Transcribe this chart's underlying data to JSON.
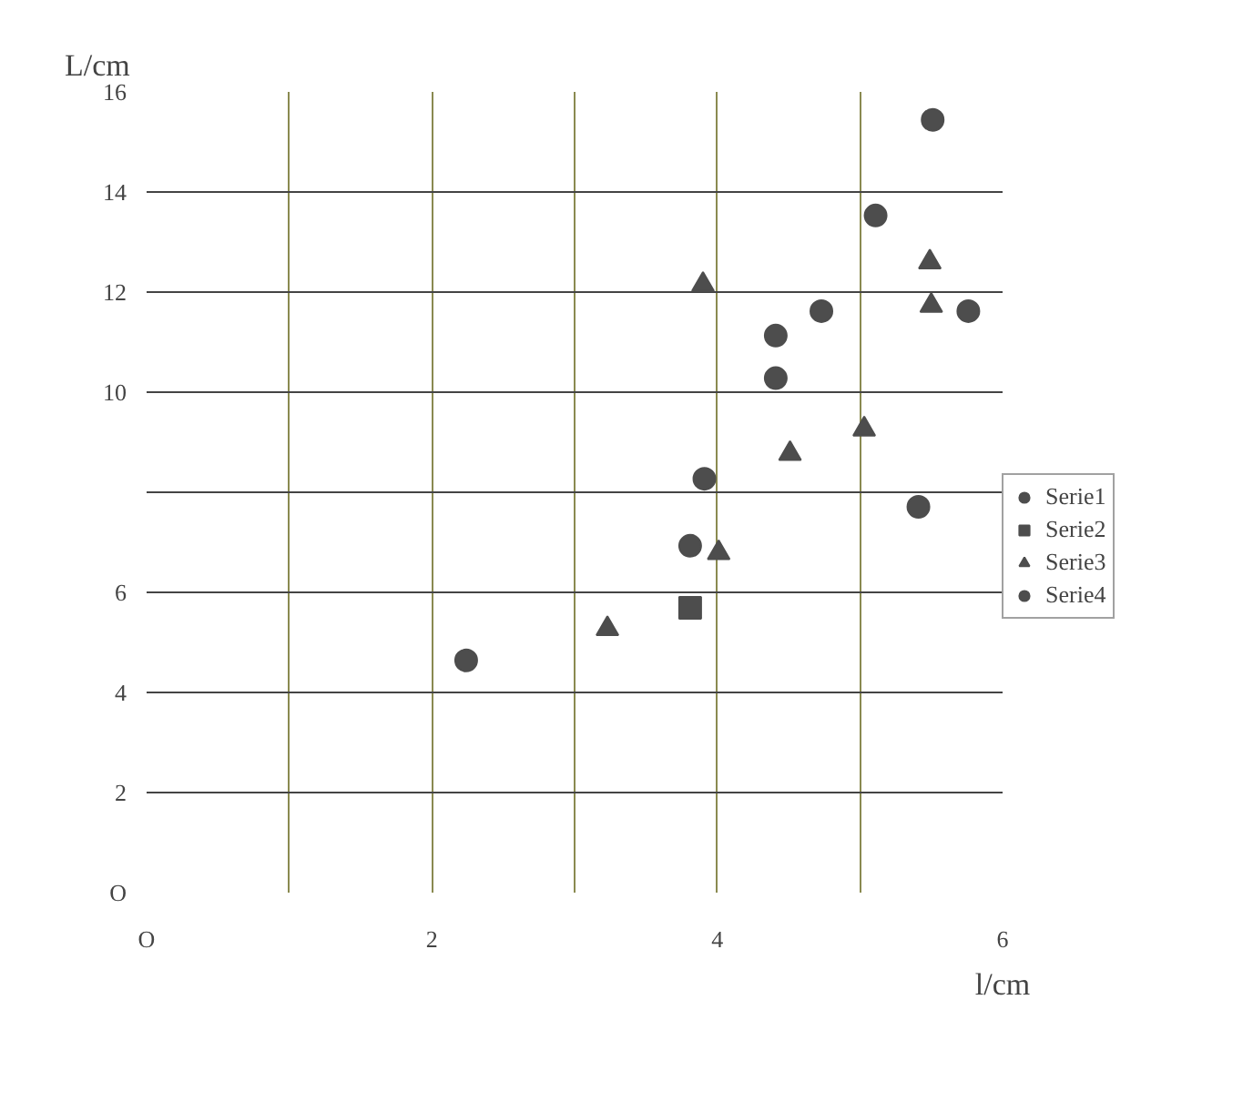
{
  "chart_data": {
    "type": "scatter",
    "xlabel": "l/cm",
    "ylabel": "L/cm",
    "xlim": [
      0,
      6
    ],
    "ylim": [
      0,
      16
    ],
    "xticks": [
      {
        "value": 0,
        "label": "O"
      },
      {
        "value": 1,
        "label": null
      },
      2,
      {
        "value": 3,
        "label": null
      },
      4,
      {
        "value": 5,
        "label": null
      },
      6
    ],
    "yticks": [
      {
        "value": 0,
        "label": "O"
      },
      2,
      4,
      6,
      {
        "value": 8,
        "label": null
      },
      10,
      12,
      14,
      16
    ],
    "grid": true,
    "legend": "right",
    "series": [
      {
        "name": "Serie1",
        "color": "#4d4d4d",
        "marker": "circle",
        "x": [
          2.24,
          3.81,
          3.91,
          4.41,
          4.41,
          4.73,
          5.11,
          5.51,
          5.41
        ],
        "values": [
          4.64,
          6.93,
          8.27,
          10.28,
          11.13,
          11.62,
          13.53,
          15.44,
          7.71
        ]
      },
      {
        "name": "Serie2",
        "color": "#4d4d4d",
        "marker": "square",
        "x": [
          3.81
        ],
        "values": [
          5.69
        ]
      },
      {
        "name": "Serie3",
        "color": "#4d4d4d",
        "marker": "triangle",
        "x": [
          3.23,
          3.9,
          4.01,
          4.51,
          5.03,
          5.49,
          5.5
        ],
        "values": [
          5.27,
          12.15,
          6.79,
          8.77,
          9.26,
          12.6,
          11.73
        ]
      },
      {
        "name": "Serie4",
        "color": "#4d4d4d",
        "marker": "circle",
        "x": [
          5.76
        ],
        "values": [
          11.62
        ]
      }
    ]
  }
}
